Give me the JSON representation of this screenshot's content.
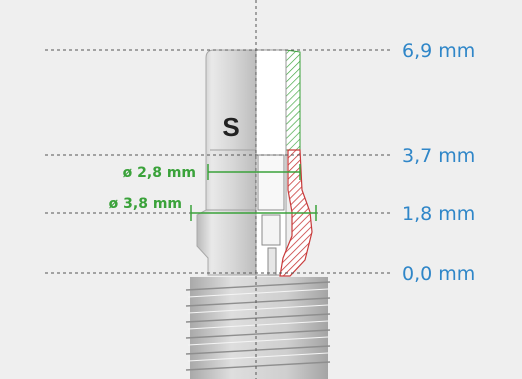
{
  "levels": [
    {
      "label": "6,9 mm"
    },
    {
      "label": "3,7 mm"
    },
    {
      "label": "1,8 mm"
    },
    {
      "label": "0,0 mm"
    }
  ],
  "abutment": {
    "letter": "S"
  },
  "diameters": [
    {
      "label": "ø 2,8 mm"
    },
    {
      "label": "ø 3,8 mm"
    }
  ],
  "colors": {
    "background": "#efefef",
    "level_text": "#2f86c8",
    "dimension_green": "#3aa23a",
    "section_red": "#c83a3a",
    "metal": "#d8d8d8"
  }
}
